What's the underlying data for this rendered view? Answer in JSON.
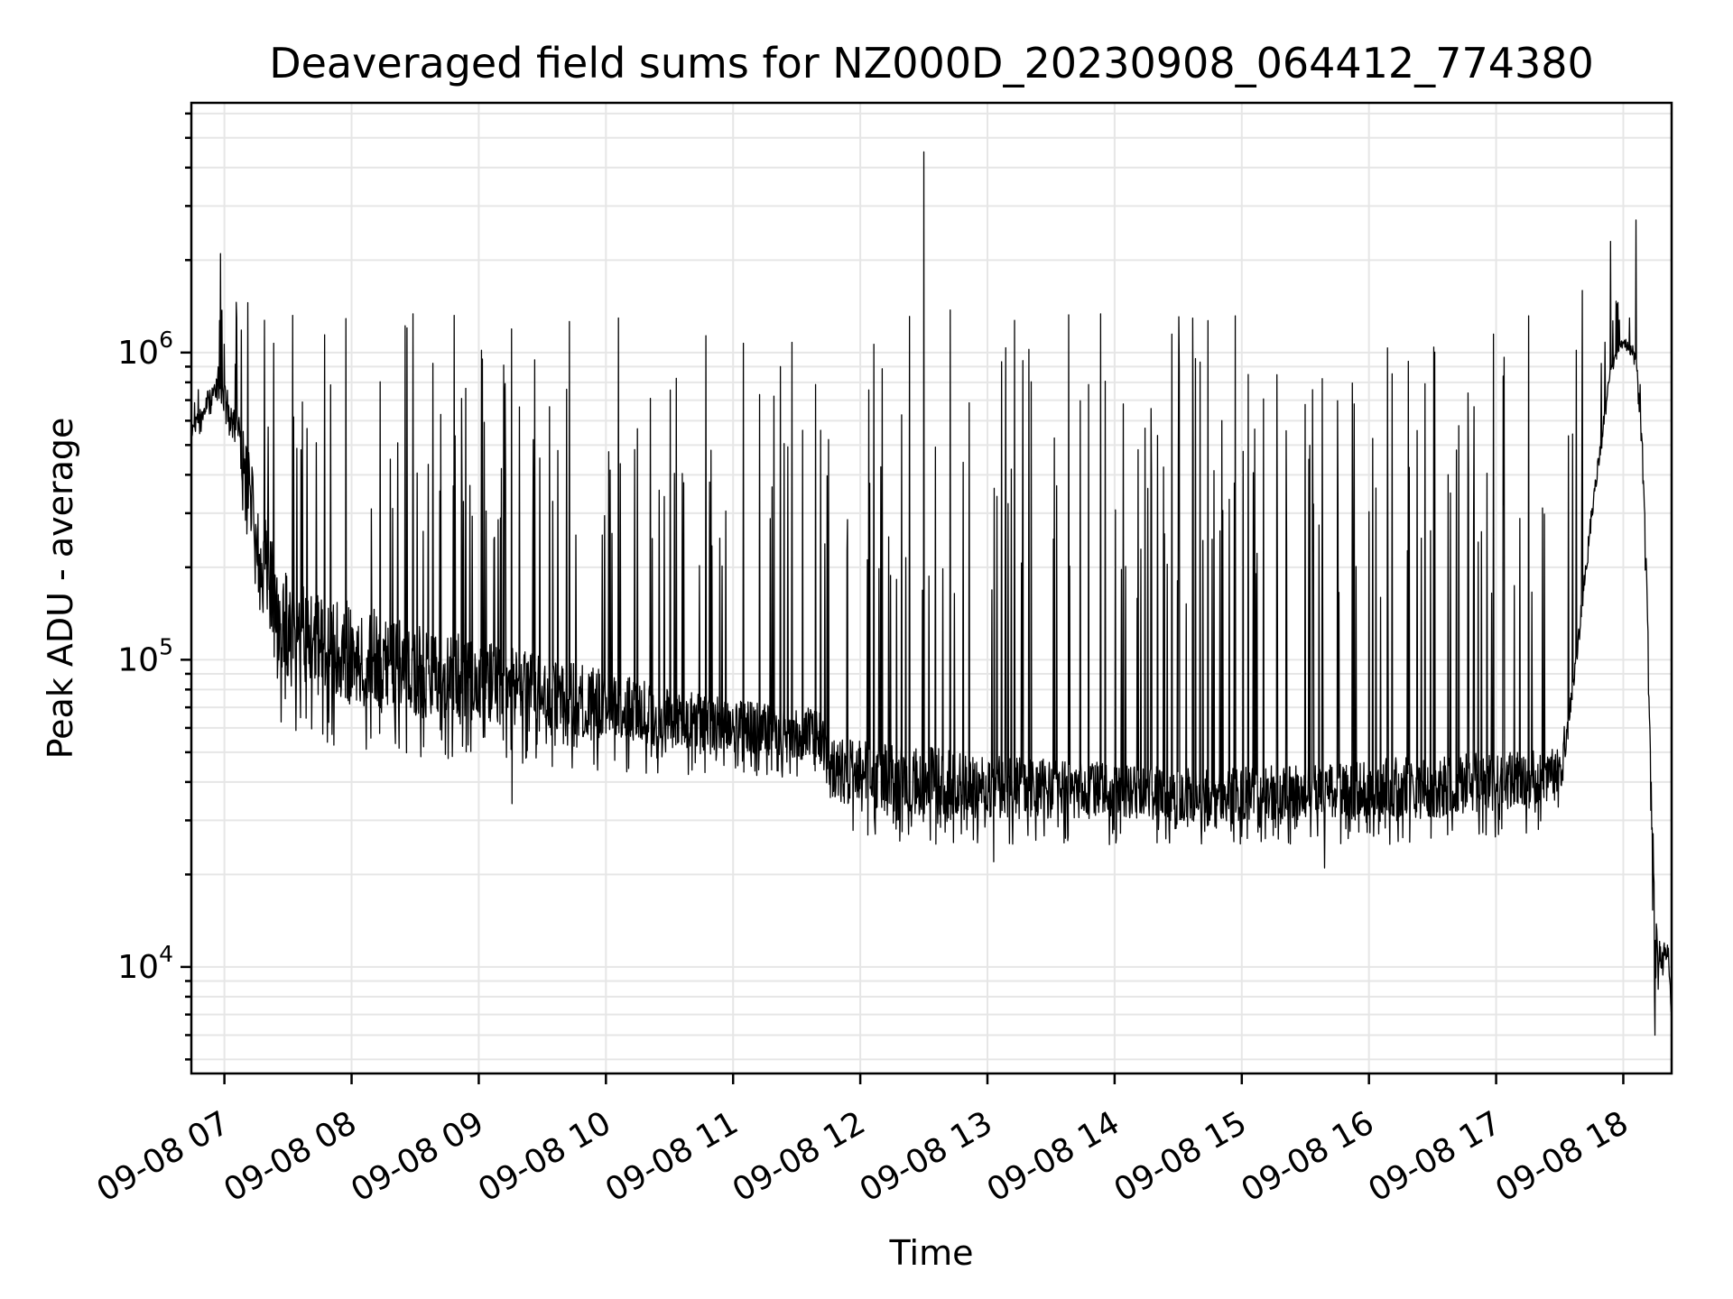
{
  "chart_data": {
    "type": "line",
    "title": "Deaveraged field sums for NZ000D_20230908_064412_774380",
    "xlabel": "Time",
    "ylabel": "Peak ADU - average",
    "x_ticks": [
      "09-08 07",
      "09-08 08",
      "09-08 09",
      "09-08 10",
      "09-08 11",
      "09-08 12",
      "09-08 13",
      "09-08 14",
      "09-08 15",
      "09-08 16",
      "09-08 17",
      "09-08 18"
    ],
    "x_tick_hours": [
      7,
      8,
      9,
      10,
      11,
      12,
      13,
      14,
      15,
      16,
      17,
      18
    ],
    "xlim_hours": [
      6.74,
      18.38
    ],
    "y_scale": "log",
    "ylim": [
      4500,
      6500000
    ],
    "y_ticks": [
      {
        "base": "10",
        "exp": "4",
        "value": 10000
      },
      {
        "base": "10",
        "exp": "5",
        "value": 100000
      },
      {
        "base": "10",
        "exp": "6",
        "value": 1000000
      }
    ],
    "grid": true,
    "series": [
      {
        "color": "#000000",
        "envelope": {
          "hours": [
            6.74,
            6.95,
            7.1,
            7.3,
            7.45,
            8.0,
            8.5,
            9.0,
            9.5,
            10.0,
            10.5,
            11.0,
            11.5,
            11.7,
            11.75,
            12.0,
            12.5,
            13.0,
            13.5,
            14.0,
            14.5,
            15.0,
            15.5,
            16.0,
            16.5,
            17.0,
            17.5,
            17.6,
            17.75,
            17.9,
            18.0,
            18.1,
            18.15,
            18.2,
            18.25,
            18.3,
            18.35,
            18.38
          ],
          "baseline": [
            550000,
            850000,
            600000,
            250000,
            150000,
            120000,
            105000,
            95000,
            85000,
            78000,
            70000,
            65000,
            62000,
            60000,
            48000,
            46000,
            44000,
            42000,
            41000,
            40000,
            39000,
            39000,
            40000,
            41000,
            42000,
            43000,
            45000,
            80000,
            300000,
            900000,
            1100000,
            1000000,
            500000,
            100000,
            12000,
            11000,
            12000,
            7000
          ],
          "trough": [
            480000,
            700000,
            400000,
            120000,
            60000,
            50000,
            48000,
            47000,
            45000,
            43000,
            42000,
            42000,
            40000,
            38000,
            30000,
            26000,
            25000,
            25000,
            25000,
            25000,
            25000,
            25000,
            25000,
            25000,
            25000,
            26000,
            28000,
            70000,
            250000,
            850000,
            1000000,
            900000,
            400000,
            60000,
            6500,
            9000,
            10000,
            6500
          ],
          "spike_peak": [
            800000,
            1500000,
            1500000,
            1400000,
            1400000,
            1400000,
            1450000,
            1400000,
            1350000,
            1350000,
            1400000,
            1400000,
            1400000,
            1000000,
            1000000,
            1300000,
            1500000,
            1500000,
            1500000,
            1400000,
            1400000,
            1500000,
            1500000,
            1400000,
            1400000,
            1500000,
            1600000,
            1600000,
            1600000,
            1600000,
            1600000,
            1500000,
            1000000,
            100000,
            16000,
            15000,
            14000,
            12000
          ]
        },
        "highlight_points": [
          {
            "hour": 6.97,
            "value": 2100000
          },
          {
            "hour": 9.26,
            "value": 34000
          },
          {
            "hour": 12.5,
            "value": 4500000
          },
          {
            "hour": 13.05,
            "value": 22000
          },
          {
            "hour": 15.65,
            "value": 21000
          },
          {
            "hour": 17.9,
            "value": 2300000
          },
          {
            "hour": 18.1,
            "value": 2700000
          },
          {
            "hour": 18.25,
            "value": 6000
          }
        ]
      }
    ]
  }
}
